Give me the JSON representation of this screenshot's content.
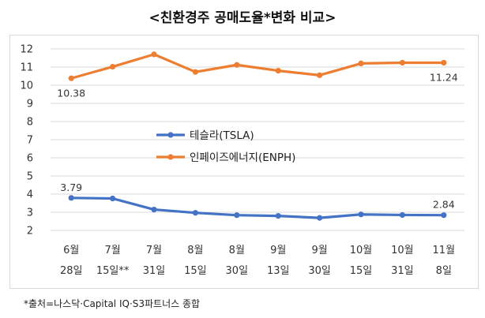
{
  "title": "<친환경주 공매도율*변화 비교>",
  "source_note": "*출처=나스닥·Capital IQ·S3파트너스 종합",
  "chart_data": {
    "type": "line",
    "title": "<친환경주 공매도율*변화 비교>",
    "categories": [
      [
        "6월",
        "28일"
      ],
      [
        "7월",
        "15일**"
      ],
      [
        "7월",
        "31일"
      ],
      [
        "8월",
        "15일"
      ],
      [
        "8월",
        "30일"
      ],
      [
        "9월",
        "13일"
      ],
      [
        "9월",
        "30일"
      ],
      [
        "10월",
        "15일"
      ],
      [
        "10월",
        "31일"
      ],
      [
        "11월",
        "8일"
      ]
    ],
    "ylim": [
      2,
      12
    ],
    "yticks": [
      2,
      3,
      4,
      5,
      6,
      7,
      8,
      9,
      10,
      11,
      12
    ],
    "grid": true,
    "legend": "center",
    "series": [
      {
        "name": "테슬라(TSLA)",
        "color": "#4472c4",
        "values": [
          3.79,
          3.76,
          3.15,
          2.97,
          2.84,
          2.8,
          2.69,
          2.88,
          2.85,
          2.84
        ],
        "labels": [
          {
            "index": 0,
            "text": "3.79"
          },
          {
            "index": 9,
            "text": "2.84"
          }
        ]
      },
      {
        "name": "인페이즈에너지(ENPH)",
        "color": "#ed7d31",
        "values": [
          10.38,
          11.02,
          11.7,
          10.73,
          11.12,
          10.8,
          10.55,
          11.2,
          11.24,
          11.24
        ],
        "labels": [
          {
            "index": 0,
            "text": "10.38"
          },
          {
            "index": 9,
            "text": "11.24"
          }
        ]
      }
    ]
  }
}
